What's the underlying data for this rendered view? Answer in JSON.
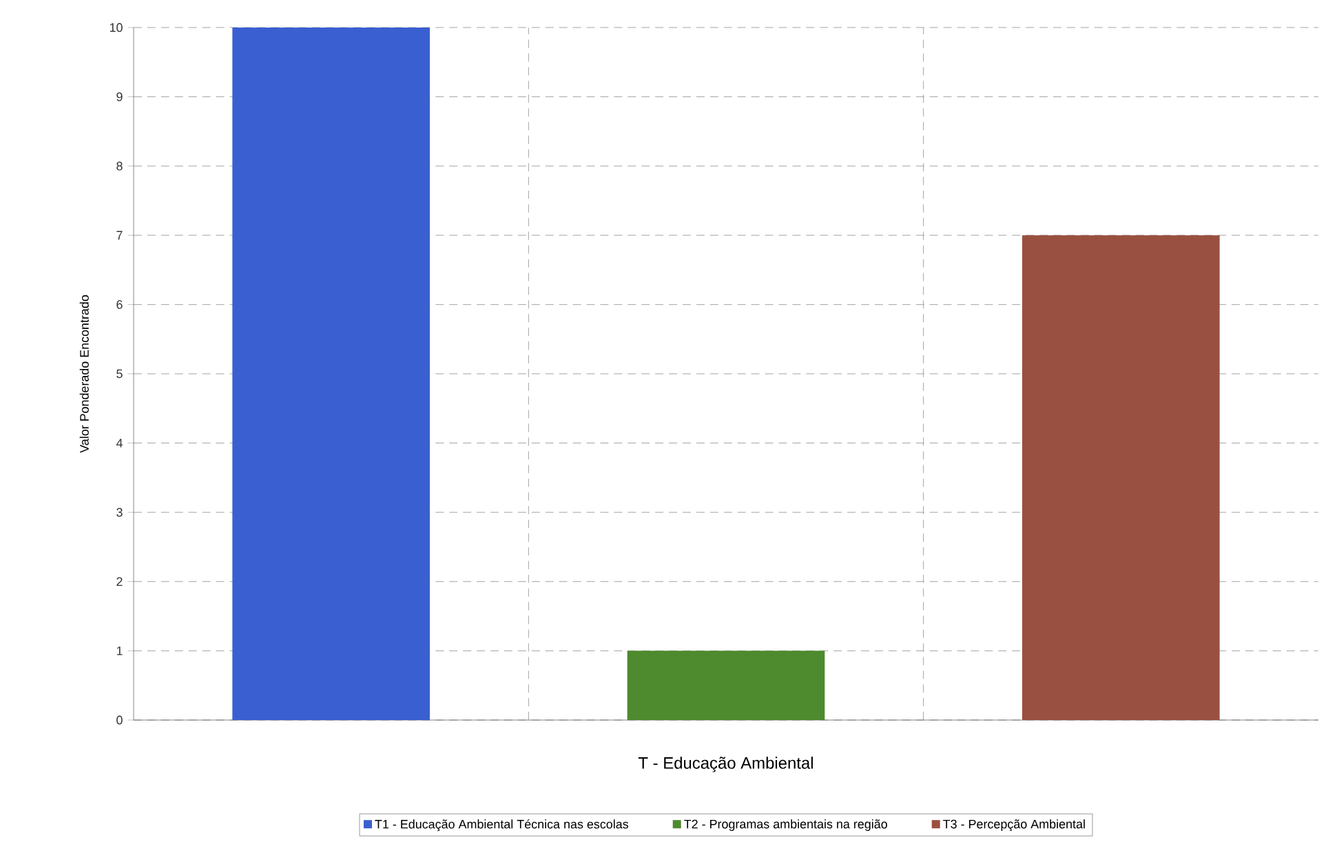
{
  "chart_data": {
    "type": "bar",
    "xlabel": "T - Educação Ambiental",
    "ylabel": "Valor Ponderado Encontrado",
    "categories": [
      null,
      null,
      null
    ],
    "series": [
      {
        "name": "T1 - Educação Ambiental Técnica nas escolas",
        "color": "#3a5fd0",
        "values": [
          10,
          null,
          null
        ]
      },
      {
        "name": "T2 - Programas ambientais na região",
        "color": "#4e8a2e",
        "values": [
          null,
          1,
          null
        ]
      },
      {
        "name": "T3 - Percepção Ambiental",
        "color": "#9a5040",
        "values": [
          null,
          null,
          7
        ]
      }
    ],
    "ylim": [
      0,
      10
    ],
    "yticks": [
      0,
      1,
      2,
      3,
      4,
      5,
      6,
      7,
      8,
      9,
      10
    ],
    "grid": true,
    "legend": "bottom",
    "tick_labels": "y"
  }
}
